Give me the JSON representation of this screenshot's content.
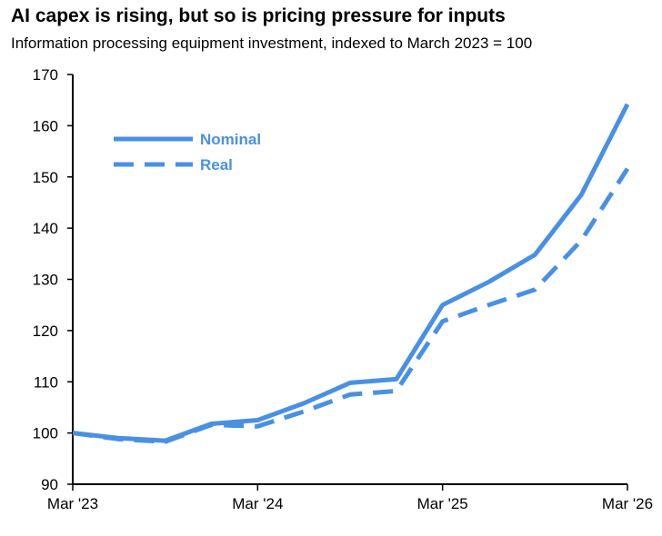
{
  "chart_data": {
    "type": "line",
    "title": "AI capex is rising, but so is pricing pressure for inputs",
    "subtitle": "Information processing equipment investment, indexed to March 2023 = 100",
    "xlabel": "",
    "ylabel": "",
    "x_tick_labels": [
      "Mar '23",
      "Mar '24",
      "Mar '25",
      "Mar '26"
    ],
    "y_tick_labels": [
      "90",
      "100",
      "110",
      "120",
      "130",
      "140",
      "150",
      "160",
      "170"
    ],
    "ylim": [
      90,
      170
    ],
    "grid": false,
    "legend_placement": "top-left",
    "x_quarters": [
      "Mar '23",
      "Jun '23",
      "Sep '23",
      "Dec '23",
      "Mar '24",
      "Jun '24",
      "Sep '24",
      "Dec '24",
      "Mar '25",
      "Jun '25",
      "Sep '25",
      "Dec '25",
      "Mar '26"
    ],
    "series": [
      {
        "name": "Nominal",
        "style": "solid",
        "color": "#4a90e2",
        "values": [
          100,
          99,
          98.5,
          101.8,
          102.5,
          105.8,
          109.8,
          110.5,
          125,
          129.5,
          134.8,
          146.5,
          164.2
        ]
      },
      {
        "name": "Real",
        "style": "dashed",
        "color": "#4a90e2",
        "values": [
          100,
          98.8,
          98.3,
          101.6,
          101.3,
          104.2,
          107.5,
          108.2,
          121.8,
          125,
          128,
          137.6,
          151.6
        ]
      }
    ]
  }
}
